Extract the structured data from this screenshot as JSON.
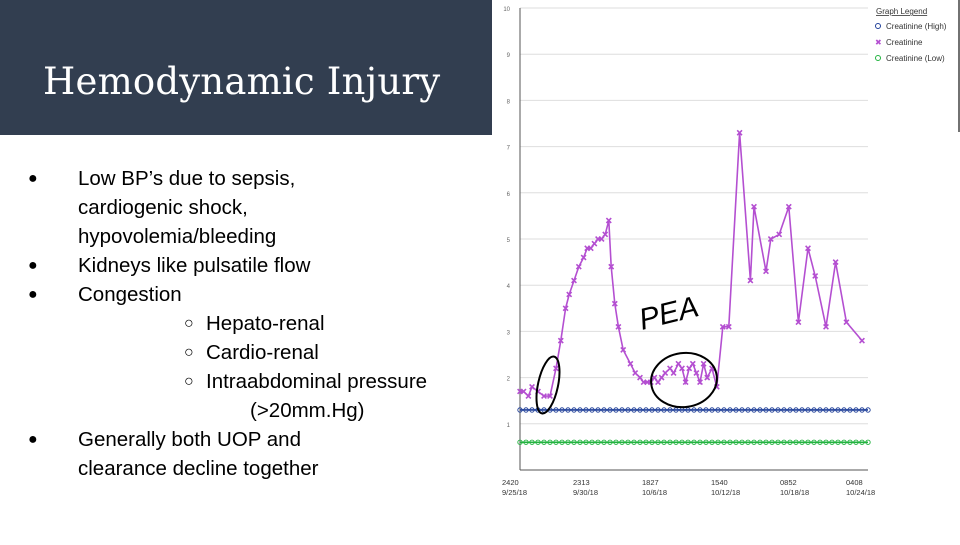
{
  "slide": {
    "title": "Hemodynamic Injury",
    "bullets": [
      {
        "text": "Low BP’s due to sepsis, cardiogenic shock, hypovolemia/bleeding",
        "lines": [
          "Low BP’s due to sepsis,",
          "cardiogenic shock,",
          "hypovolemia/bleeding"
        ]
      },
      {
        "text": "Kidneys like pulsatile flow",
        "lines": [
          "Kidneys like pulsatile flow"
        ]
      },
      {
        "text": "Congestion",
        "lines": [
          "Congestion"
        ],
        "sub": [
          {
            "lines": [
              "Hepato-renal"
            ]
          },
          {
            "lines": [
              "Cardio-renal"
            ]
          },
          {
            "lines": [
              "Intraabdominal pressure",
              "(>20mm.Hg)"
            ]
          }
        ]
      },
      {
        "text": "Generally both UOP and clearance decline together",
        "lines": [
          "Generally both UOP and",
          "clearance decline together"
        ]
      }
    ]
  },
  "colors": {
    "title_bar": "#323e50",
    "series_high": "#1f3f99",
    "series_main": "#b44fd1",
    "series_low": "#22b33f",
    "annotation": "#000000"
  },
  "chart_data": {
    "type": "line",
    "ylim": [
      0,
      10
    ],
    "y_ticks": [
      "1",
      "2",
      "3",
      "4",
      "5",
      "6",
      "7",
      "8",
      "9",
      "10"
    ],
    "x_ticks": [
      {
        "time": "2420",
        "date": "9/25/18"
      },
      {
        "time": "2313",
        "date": "9/30/18"
      },
      {
        "time": "1827",
        "date": "10/6/18"
      },
      {
        "time": "1540",
        "date": "10/12/18"
      },
      {
        "time": "0852",
        "date": "10/18/18"
      },
      {
        "time": "0408",
        "date": "10/24/18"
      }
    ],
    "legend": {
      "title": "Graph Legend",
      "position": "top-right",
      "entries": [
        "Creatinine (High)",
        "Creatinine",
        "Creatinine (Low)"
      ]
    },
    "series": [
      {
        "name": "Creatinine (High)",
        "color_key": "series_high",
        "marker": "circle",
        "constant": 1.3,
        "x_range": [
          0,
          29
        ]
      },
      {
        "name": "Creatinine (Low)",
        "color_key": "series_low",
        "marker": "circle",
        "constant": 0.6,
        "x_range": [
          0,
          29
        ]
      },
      {
        "name": "Creatinine",
        "color_key": "series_main",
        "marker": "x",
        "x": [
          0,
          0.3,
          0.7,
          1.0,
          1.5,
          2.0,
          2.5,
          3.0,
          3.4,
          3.8,
          4.1,
          4.5,
          4.9,
          5.3,
          5.6,
          5.9,
          6.2,
          6.5,
          6.8,
          7.1,
          7.4,
          7.6,
          7.9,
          8.2,
          8.6,
          9.2,
          9.6,
          10.0,
          10.3,
          10.6,
          10.9,
          11.2,
          11.5,
          11.8,
          12.1,
          12.5,
          12.8,
          13.2,
          13.5,
          13.8,
          14.1,
          14.4,
          14.7,
          15.0,
          15.3,
          15.6,
          16.0,
          16.4,
          16.9,
          17.4,
          18.3,
          19.2,
          19.5,
          20.5,
          20.9,
          21.6,
          22.4,
          23.2,
          24.0,
          24.6,
          25.5,
          26.3,
          27.2,
          28.5
        ],
        "y": [
          1.7,
          1.7,
          1.6,
          1.8,
          1.7,
          1.6,
          1.6,
          2.2,
          2.8,
          3.5,
          3.8,
          4.1,
          4.4,
          4.6,
          4.8,
          4.8,
          4.9,
          5.0,
          5.0,
          5.1,
          5.4,
          4.4,
          3.6,
          3.1,
          2.6,
          2.3,
          2.1,
          2.0,
          1.9,
          1.9,
          1.9,
          2.0,
          1.9,
          2.0,
          2.1,
          2.2,
          2.1,
          2.3,
          2.2,
          1.9,
          2.2,
          2.3,
          2.1,
          1.9,
          2.3,
          2.0,
          2.2,
          1.8,
          3.1,
          3.1,
          7.3,
          4.1,
          5.7,
          4.3,
          5.0,
          5.1,
          5.7,
          3.2,
          4.8,
          4.2,
          3.1,
          4.5,
          3.2,
          2.8
        ]
      }
    ],
    "annotations": [
      "PEA"
    ]
  }
}
